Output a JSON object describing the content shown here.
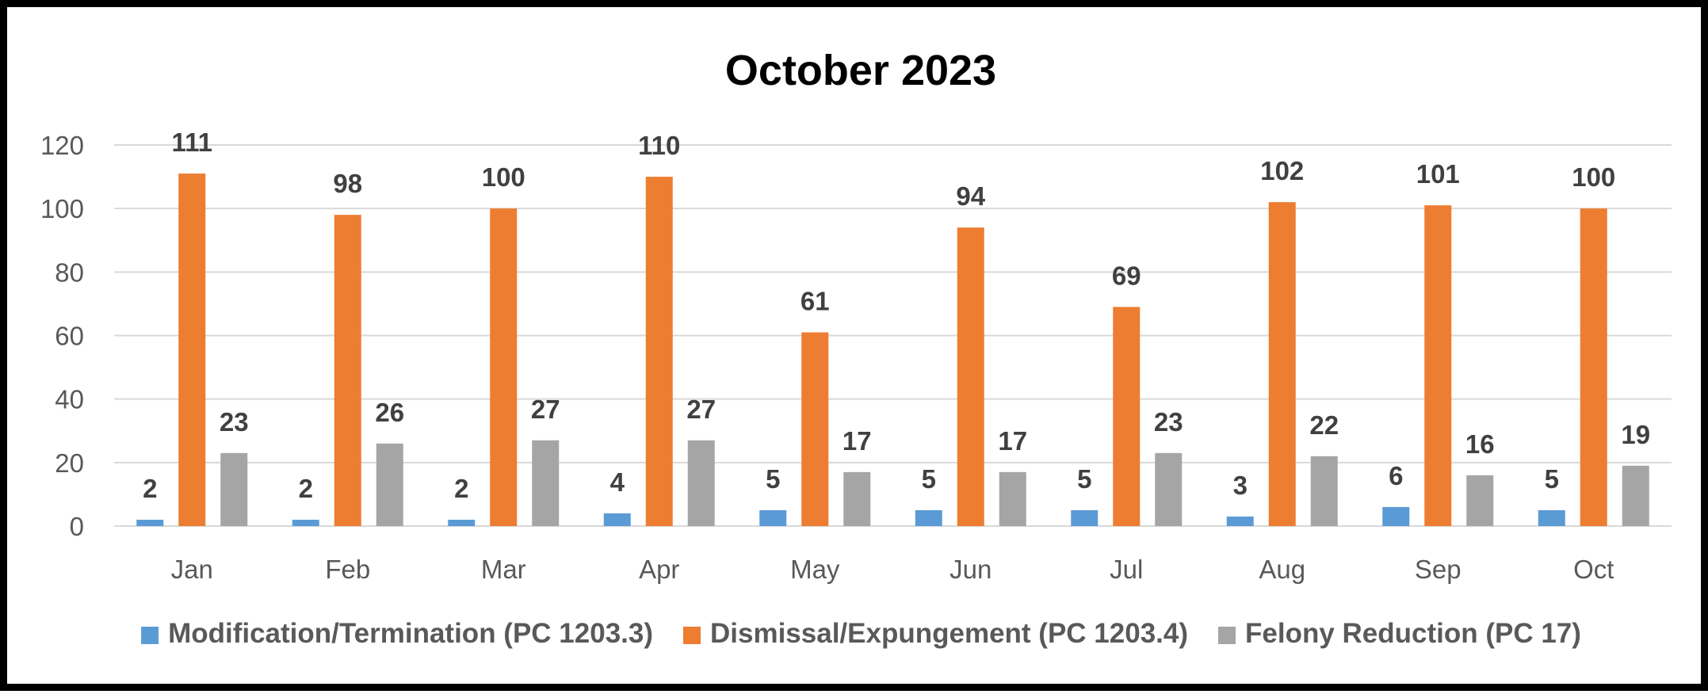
{
  "chart_data": {
    "type": "bar",
    "title": "October 2023",
    "categories": [
      "Jan",
      "Feb",
      "Mar",
      "Apr",
      "May",
      "Jun",
      "Jul",
      "Aug",
      "Sep",
      "Oct"
    ],
    "series": [
      {
        "name": "Modification/Termination (PC 1203.3)",
        "color": "#5b9bd5",
        "values": [
          2,
          2,
          2,
          4,
          5,
          5,
          5,
          3,
          6,
          5
        ]
      },
      {
        "name": "Dismissal/Expungement (PC 1203.4)",
        "color": "#ed7d31",
        "values": [
          111,
          98,
          100,
          110,
          61,
          94,
          69,
          102,
          101,
          100
        ]
      },
      {
        "name": "Felony Reduction (PC 17)",
        "color": "#a5a5a5",
        "values": [
          23,
          26,
          27,
          27,
          17,
          17,
          23,
          22,
          16,
          19
        ]
      }
    ],
    "ylim": [
      0,
      120
    ],
    "yticks": [
      0,
      20,
      40,
      60,
      80,
      100,
      120
    ],
    "xlabel": "",
    "ylabel": "",
    "grid": true,
    "legend_position": "bottom",
    "data_labels": true
  }
}
